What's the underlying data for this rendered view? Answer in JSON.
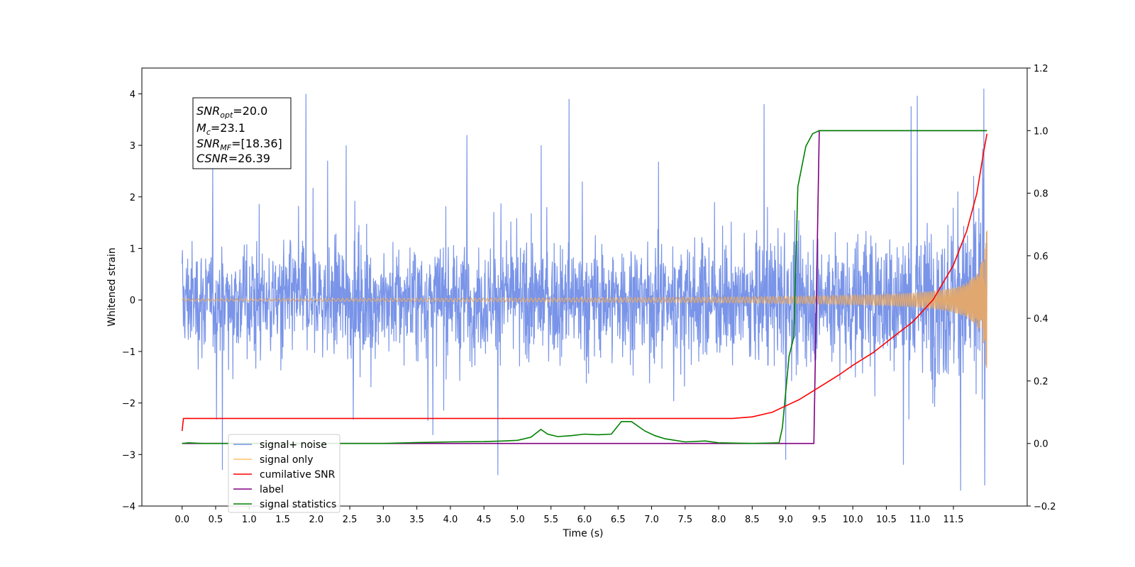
{
  "chart_data": {
    "type": "line",
    "xlabel": "Time (s)",
    "ylabel": "Whitened strain",
    "xlim": [
      -0.6,
      12.6
    ],
    "ylim": [
      -4,
      4.5
    ],
    "y2lim": [
      -0.2,
      1.2
    ],
    "x_ticks": [
      "0.0",
      "0.5",
      "1.0",
      "1.5",
      "2.0",
      "2.5",
      "3.0",
      "3.5",
      "4.0",
      "4.5",
      "5.0",
      "5.5",
      "6.0",
      "6.5",
      "7.0",
      "7.5",
      "8.0",
      "8.5",
      "9.0",
      "9.5",
      "10.0",
      "10.5",
      "11.0",
      "11.5"
    ],
    "y_ticks": [
      "4",
      "3",
      "2",
      "1",
      "0",
      "−1",
      "−2",
      "−3",
      "−4"
    ],
    "y2_ticks": [
      "1.2",
      "1.0",
      "0.8",
      "0.6",
      "0.4",
      "0.2",
      "0.0",
      "−0.2"
    ],
    "info_box": {
      "snr_opt": {
        "base": "SNR",
        "sub": "opt",
        "value": "=20.0"
      },
      "mc": {
        "base": "M",
        "sub": "c",
        "value": "=23.1"
      },
      "snr_mf": {
        "base": "SNR",
        "sub": "MF",
        "value": "=[18.36]"
      },
      "csnr": {
        "base": "CSNR",
        "value": "=26.39"
      }
    },
    "legend": {
      "placement": "lower-left",
      "entries": [
        {
          "label": "signal+ noise",
          "color": "#7994e8"
        },
        {
          "label": "signal only",
          "color": "#ffc06a"
        },
        {
          "label": "cumilative SNR",
          "color": "#ff0000"
        },
        {
          "label": "label",
          "color": "#800080"
        },
        {
          "label": "signal statistics",
          "color": "#008000"
        }
      ]
    },
    "series": [
      {
        "name": "signal+ noise",
        "axis": "left",
        "color": "#7994e8",
        "description_points": {
          "x_range": [
            0,
            12
          ],
          "baseline_amplitude": 1.4,
          "spikes_max": 4.1,
          "spikes_min": -3.6
        }
      },
      {
        "name": "signal only",
        "axis": "left",
        "color": "#e0a870",
        "chirp": {
          "x_start": 0,
          "x_end": 12,
          "flat_until": 8.2,
          "final_amplitude": 1.5
        }
      },
      {
        "name": "cumilative SNR",
        "axis": "right",
        "color": "#ff0000",
        "x": [
          0.0,
          0.02,
          8.2,
          8.5,
          8.8,
          9.0,
          9.2,
          9.5,
          9.8,
          10.0,
          10.3,
          10.6,
          10.9,
          11.2,
          11.5,
          11.7,
          11.85,
          11.95,
          12.0
        ],
        "y": [
          0.04,
          0.08,
          0.08,
          0.085,
          0.1,
          0.12,
          0.14,
          0.18,
          0.22,
          0.25,
          0.29,
          0.34,
          0.39,
          0.46,
          0.57,
          0.68,
          0.8,
          0.93,
          0.99
        ]
      },
      {
        "name": "label",
        "axis": "right",
        "color": "#800080",
        "x": [
          0.0,
          9.42,
          9.5,
          12.0
        ],
        "y": [
          0.0,
          0.0,
          1.0,
          1.0
        ]
      },
      {
        "name": "signal statistics",
        "axis": "right",
        "color": "#008000",
        "x": [
          0.0,
          0.1,
          0.3,
          3.0,
          3.5,
          4.0,
          4.5,
          4.8,
          5.0,
          5.2,
          5.35,
          5.45,
          5.6,
          5.8,
          6.0,
          6.2,
          6.4,
          6.55,
          6.7,
          6.9,
          7.05,
          7.2,
          7.5,
          7.8,
          8.0,
          8.5,
          8.9,
          8.95,
          9.05,
          9.12,
          9.18,
          9.3,
          9.4,
          9.5,
          10.0,
          11.0,
          12.0
        ],
        "y": [
          0.0,
          0.002,
          0.0,
          0.0,
          0.003,
          0.005,
          0.006,
          0.008,
          0.01,
          0.02,
          0.045,
          0.03,
          0.022,
          0.025,
          0.03,
          0.028,
          0.03,
          0.07,
          0.07,
          0.04,
          0.025,
          0.015,
          0.005,
          0.008,
          0.002,
          0.0,
          0.002,
          0.05,
          0.28,
          0.34,
          0.82,
          0.95,
          0.99,
          1.0,
          1.0,
          1.0,
          1.0
        ]
      }
    ]
  }
}
